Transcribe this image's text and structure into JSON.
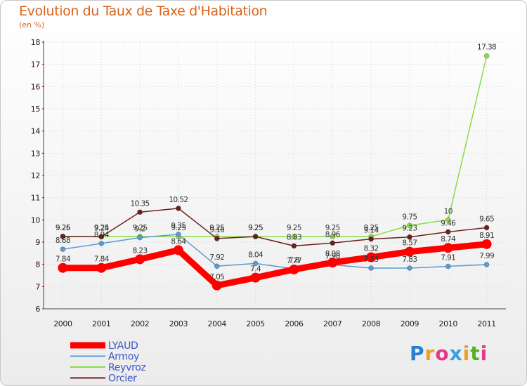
{
  "chart_data": {
    "type": "line",
    "title": "Evolution du Taux de Taxe d'Habitation",
    "ylabel": "(en %)",
    "xlabel": "",
    "ylim": [
      6,
      18
    ],
    "yticks": [
      6,
      7,
      8,
      9,
      10,
      11,
      12,
      13,
      14,
      15,
      16,
      17,
      18
    ],
    "categories": [
      "2000",
      "2001",
      "2002",
      "2003",
      "2004",
      "2005",
      "2006",
      "2007",
      "2008",
      "2009",
      "2010",
      "2011"
    ],
    "series": [
      {
        "name": "LYAUD",
        "color": "#ff0000",
        "values": [
          7.84,
          7.84,
          8.23,
          8.64,
          7.05,
          7.4,
          7.77,
          8.08,
          8.32,
          8.57,
          8.74,
          8.91
        ],
        "labels": [
          "7.84",
          "7.84",
          "8.23",
          "8.64",
          "7.05",
          "7.4",
          "7.77",
          "8.08",
          "8.32",
          "8.57",
          "8.74",
          "8.91"
        ]
      },
      {
        "name": "Armoy",
        "color": "#5d9ad0",
        "values": [
          8.68,
          8.94,
          9.2,
          9.35,
          7.92,
          8.04,
          7.8,
          7.98,
          7.83,
          7.83,
          7.91,
          7.99
        ],
        "labels": [
          "8.68",
          "8.94",
          "9.2",
          "9.35",
          "7.92",
          "8.04",
          "7.8",
          "7.98",
          "7.83",
          "7.83",
          "7.91",
          "7.99"
        ]
      },
      {
        "name": "Reyvroz",
        "color": "#88dd44",
        "values": [
          9.25,
          9.25,
          9.25,
          9.25,
          9.25,
          9.25,
          9.25,
          9.25,
          9.25,
          9.75,
          10,
          17.38
        ],
        "labels": [
          "9.25",
          "9.25",
          "9.25",
          "9.25",
          "9.25",
          "9.25",
          "9.25",
          "9.25",
          "9.25",
          "9.75",
          "10",
          "17.38"
        ]
      },
      {
        "name": "Orcier",
        "color": "#6b1f1f",
        "values": [
          9.26,
          9.24,
          10.35,
          10.52,
          9.16,
          9.25,
          8.83,
          8.96,
          9.14,
          9.23,
          9.46,
          9.65
        ],
        "labels": [
          "9.26",
          "9.24",
          "10.35",
          "10.52",
          "9.16",
          "9.25",
          "8.83",
          "8.96",
          "9.14",
          "9.23",
          "9.46",
          "9.65"
        ]
      }
    ],
    "legend_position": "bottom-left"
  },
  "logo": {
    "letters": [
      "P",
      "r",
      "o",
      "x",
      "i",
      "t",
      "i"
    ],
    "colors": [
      "#2a7fd0",
      "#f0a020",
      "#e23a8a",
      "#3aa0e0",
      "#f0a020",
      "#55b02a",
      "#e23a8a"
    ]
  }
}
